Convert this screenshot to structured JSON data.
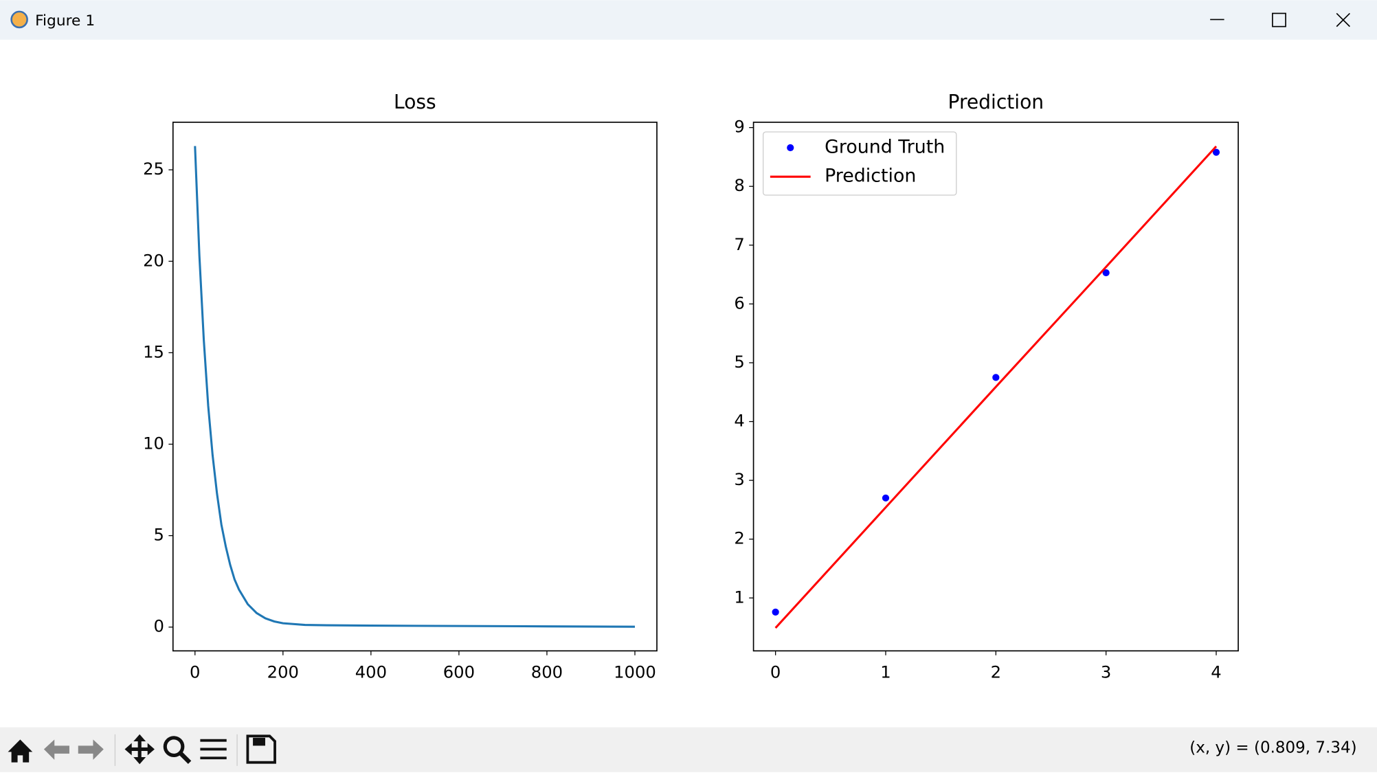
{
  "window": {
    "title": "Figure 1"
  },
  "chart_data": [
    {
      "type": "line",
      "title": "Loss",
      "x": [
        0,
        10,
        20,
        30,
        40,
        50,
        60,
        70,
        80,
        90,
        100,
        120,
        140,
        160,
        180,
        200,
        250,
        300,
        400,
        500,
        600,
        700,
        800,
        900,
        1000
      ],
      "series": [
        {
          "color": "#1f77b4",
          "style": "line",
          "values": [
            26.3,
            20.3,
            15.7,
            12.1,
            9.4,
            7.3,
            5.6,
            4.4,
            3.4,
            2.6,
            2.05,
            1.25,
            0.77,
            0.48,
            0.31,
            0.21,
            0.12,
            0.1,
            0.08,
            0.07,
            0.06,
            0.05,
            0.04,
            0.03,
            0.02
          ]
        }
      ],
      "xlim": [
        -50,
        1050
      ],
      "ylim": [
        -1.3,
        27.6
      ],
      "xticks": [
        0,
        200,
        400,
        600,
        800,
        1000
      ],
      "yticks": [
        0,
        5,
        10,
        15,
        20,
        25
      ]
    },
    {
      "type": "line",
      "title": "Prediction",
      "x": [
        0,
        1,
        2,
        3,
        4
      ],
      "series": [
        {
          "name": "Ground Truth",
          "color": "#0000ff",
          "style": "points",
          "values": [
            0.76,
            2.7,
            4.75,
            6.53,
            8.58
          ]
        },
        {
          "name": "Prediction",
          "color": "#ff0000",
          "style": "line",
          "values": [
            0.49,
            2.54,
            4.59,
            6.63,
            8.68
          ]
        }
      ],
      "xlim": [
        -0.2,
        4.2
      ],
      "ylim": [
        0.1,
        9.09
      ],
      "xticks": [
        0,
        1,
        2,
        3,
        4
      ],
      "yticks": [
        1,
        2,
        3,
        4,
        5,
        6,
        7,
        8,
        9
      ],
      "legend": "upper left"
    }
  ],
  "toolbar": {
    "coordinates": "(x, y) = (0.809, 7.34)"
  }
}
